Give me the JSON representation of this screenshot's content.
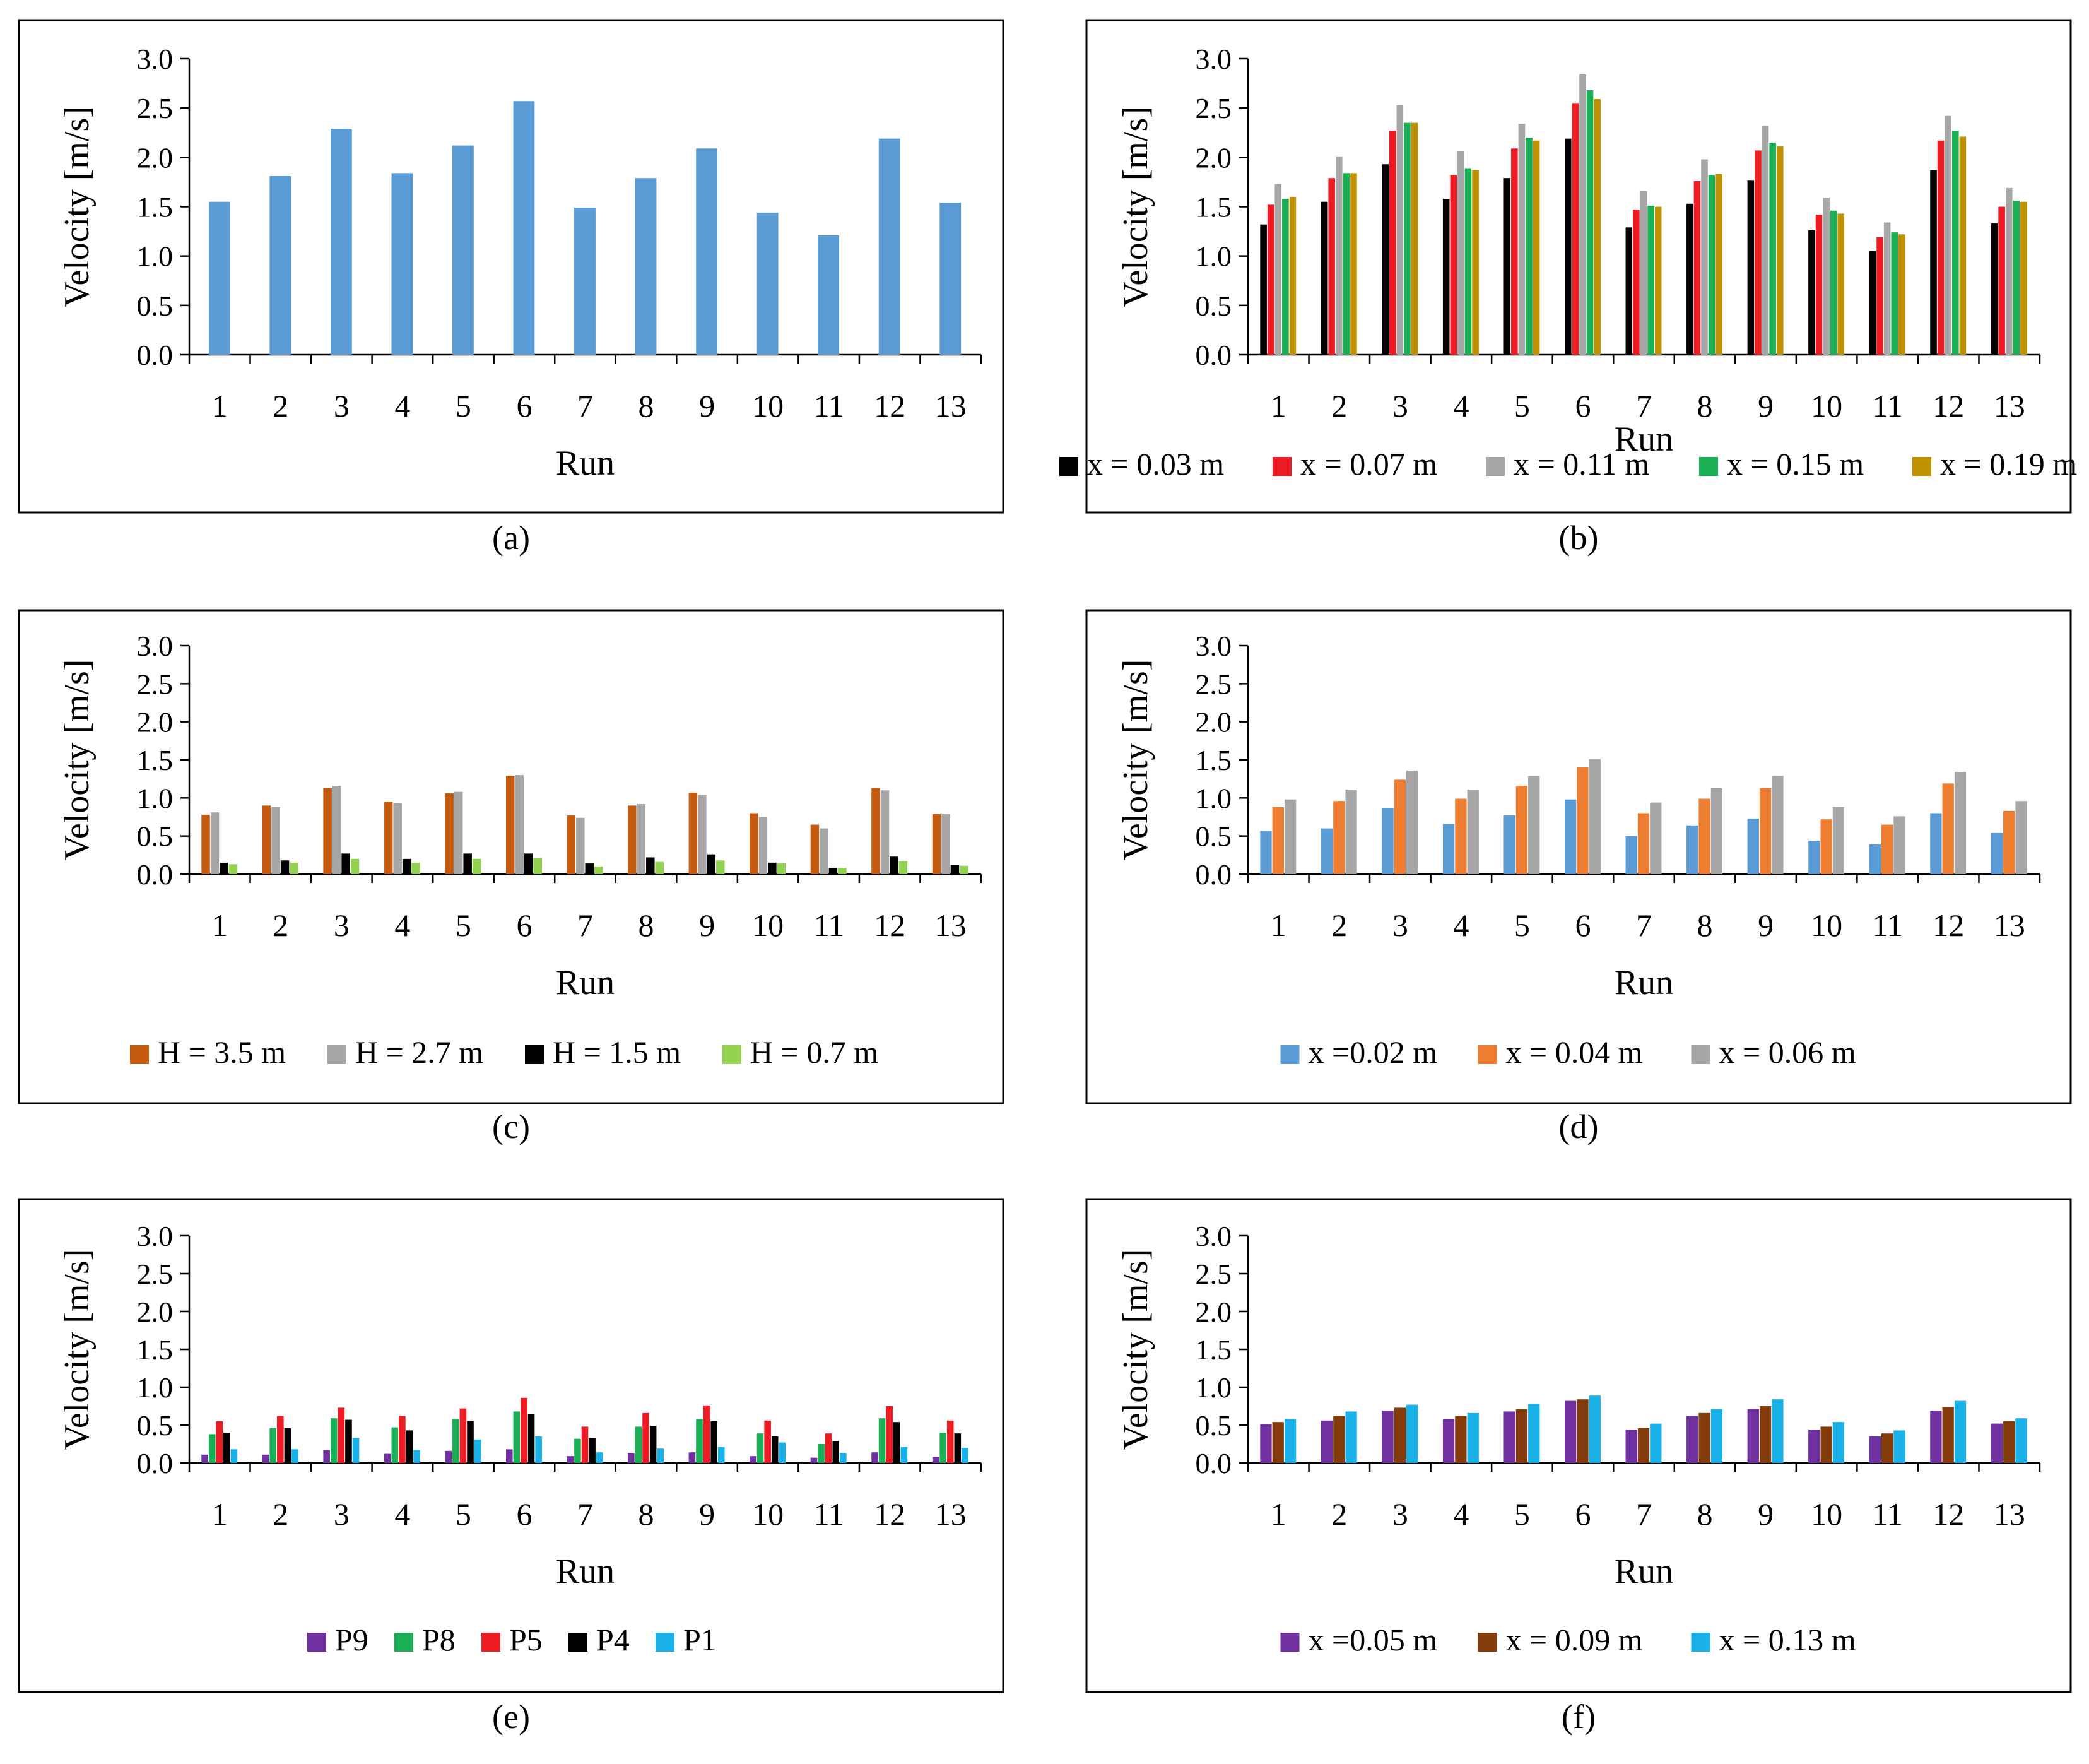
{
  "figure": {
    "panels": [
      {
        "id": "a",
        "caption": "(a)"
      },
      {
        "id": "b",
        "caption": "(b)"
      },
      {
        "id": "c",
        "caption": "(c)"
      },
      {
        "id": "d",
        "caption": "(d)"
      },
      {
        "id": "e",
        "caption": "(e)"
      },
      {
        "id": "f",
        "caption": "(f)"
      }
    ]
  },
  "chart_data": [
    {
      "panel": "a",
      "type": "bar",
      "xlabel": "Run",
      "ylabel": "Velocity [m/s]",
      "ylim": [
        0,
        3.0
      ],
      "yticks": [
        "0.0",
        "0.5",
        "1.0",
        "1.5",
        "2.0",
        "2.5",
        "3.0"
      ],
      "categories": [
        "1",
        "2",
        "3",
        "4",
        "5",
        "6",
        "7",
        "8",
        "9",
        "10",
        "11",
        "12",
        "13"
      ],
      "legend": "none",
      "series": [
        {
          "name": "",
          "color": "#5b9bd5",
          "values": [
            1.55,
            1.81,
            2.29,
            1.84,
            2.12,
            2.57,
            1.49,
            1.79,
            2.09,
            1.44,
            1.21,
            2.19,
            1.54
          ]
        }
      ]
    },
    {
      "panel": "b",
      "type": "bar",
      "xlabel": "Run",
      "ylabel": "Velocity [m/s]",
      "ylim": [
        0,
        3.0
      ],
      "yticks": [
        "0.0",
        "0.5",
        "1.0",
        "1.5",
        "2.0",
        "2.5",
        "3.0"
      ],
      "categories": [
        "1",
        "2",
        "3",
        "4",
        "5",
        "6",
        "7",
        "8",
        "9",
        "10",
        "11",
        "12",
        "13"
      ],
      "legend": "bottom",
      "series": [
        {
          "name": "x = 0.03 m",
          "color": "#000000",
          "values": [
            1.32,
            1.55,
            1.93,
            1.58,
            1.79,
            2.19,
            1.29,
            1.53,
            1.77,
            1.26,
            1.05,
            1.87,
            1.33
          ]
        },
        {
          "name": "x = 0.07 m",
          "color": "#ed1c24",
          "values": [
            1.52,
            1.79,
            2.27,
            1.82,
            2.09,
            2.55,
            1.47,
            1.76,
            2.07,
            1.42,
            1.19,
            2.17,
            1.5
          ]
        },
        {
          "name": "x = 0.11 m",
          "color": "#a6a6a6",
          "values": [
            1.73,
            2.01,
            2.53,
            2.06,
            2.34,
            2.84,
            1.66,
            1.98,
            2.32,
            1.59,
            1.34,
            2.42,
            1.69
          ]
        },
        {
          "name": "x = 0.15 m",
          "color": "#1aaf54",
          "values": [
            1.58,
            1.84,
            2.35,
            1.89,
            2.2,
            2.68,
            1.51,
            1.82,
            2.15,
            1.46,
            1.24,
            2.27,
            1.56
          ]
        },
        {
          "name": "x = 0.19 m",
          "color": "#bf9000",
          "values": [
            1.6,
            1.84,
            2.35,
            1.87,
            2.17,
            2.59,
            1.5,
            1.83,
            2.11,
            1.43,
            1.22,
            2.21,
            1.55
          ]
        }
      ]
    },
    {
      "panel": "c",
      "type": "bar",
      "xlabel": "Run",
      "ylabel": "Velocity [m/s]",
      "ylim": [
        0,
        3.0
      ],
      "yticks": [
        "0.0",
        "0.5",
        "1.0",
        "1.5",
        "2.0",
        "2.5",
        "3.0"
      ],
      "categories": [
        "1",
        "2",
        "3",
        "4",
        "5",
        "6",
        "7",
        "8",
        "9",
        "10",
        "11",
        "12",
        "13"
      ],
      "legend": "bottom",
      "series": [
        {
          "name": "H = 3.5 m",
          "color": "#c55a11",
          "values": [
            0.78,
            0.9,
            1.13,
            0.95,
            1.06,
            1.29,
            0.77,
            0.9,
            1.07,
            0.8,
            0.65,
            1.13,
            0.79
          ]
        },
        {
          "name": "H = 2.7 m",
          "color": "#a6a6a6",
          "values": [
            0.81,
            0.88,
            1.16,
            0.93,
            1.08,
            1.3,
            0.74,
            0.92,
            1.04,
            0.75,
            0.6,
            1.1,
            0.79
          ]
        },
        {
          "name": "H = 1.5 m",
          "color": "#000000",
          "values": [
            0.15,
            0.18,
            0.27,
            0.2,
            0.27,
            0.27,
            0.14,
            0.22,
            0.26,
            0.15,
            0.08,
            0.23,
            0.12
          ]
        },
        {
          "name": "H = 0.7 m",
          "color": "#92d050",
          "values": [
            0.13,
            0.15,
            0.2,
            0.15,
            0.2,
            0.21,
            0.1,
            0.16,
            0.18,
            0.14,
            0.08,
            0.17,
            0.11
          ]
        }
      ]
    },
    {
      "panel": "d",
      "type": "bar",
      "xlabel": "Run",
      "ylabel": "Velocity [m/s]",
      "ylim": [
        0,
        3.0
      ],
      "yticks": [
        "0.0",
        "0.5",
        "1.0",
        "1.5",
        "2.0",
        "2.5",
        "3.0"
      ],
      "categories": [
        "1",
        "2",
        "3",
        "4",
        "5",
        "6",
        "7",
        "8",
        "9",
        "10",
        "11",
        "12",
        "13"
      ],
      "legend": "bottom",
      "series": [
        {
          "name": "x =0.02 m",
          "color": "#5b9bd5",
          "values": [
            0.57,
            0.6,
            0.87,
            0.66,
            0.77,
            0.98,
            0.5,
            0.64,
            0.73,
            0.44,
            0.39,
            0.8,
            0.54
          ]
        },
        {
          "name": "x = 0.04 m",
          "color": "#ed7d31",
          "values": [
            0.88,
            0.96,
            1.24,
            0.99,
            1.16,
            1.4,
            0.8,
            0.99,
            1.13,
            0.72,
            0.65,
            1.19,
            0.83
          ]
        },
        {
          "name": "x = 0.06 m",
          "color": "#a6a6a6",
          "values": [
            0.98,
            1.11,
            1.36,
            1.11,
            1.29,
            1.51,
            0.94,
            1.13,
            1.29,
            0.88,
            0.76,
            1.34,
            0.96
          ]
        }
      ]
    },
    {
      "panel": "e",
      "type": "bar",
      "xlabel": "Run",
      "ylabel": "Velocity [m/s]",
      "ylim": [
        0,
        3.0
      ],
      "yticks": [
        "0.0",
        "0.5",
        "1.0",
        "1.5",
        "2.0",
        "2.5",
        "3.0"
      ],
      "categories": [
        "1",
        "2",
        "3",
        "4",
        "5",
        "6",
        "7",
        "8",
        "9",
        "10",
        "11",
        "12",
        "13"
      ],
      "legend": "bottom",
      "series": [
        {
          "name": "P9",
          "color": "#7030a0",
          "values": [
            0.11,
            0.11,
            0.17,
            0.12,
            0.16,
            0.18,
            0.09,
            0.13,
            0.14,
            0.09,
            0.07,
            0.14,
            0.08
          ]
        },
        {
          "name": "P8",
          "color": "#1aaf54",
          "values": [
            0.38,
            0.46,
            0.59,
            0.47,
            0.58,
            0.68,
            0.32,
            0.48,
            0.58,
            0.39,
            0.25,
            0.59,
            0.4
          ]
        },
        {
          "name": "P5",
          "color": "#ed1c24",
          "values": [
            0.55,
            0.62,
            0.73,
            0.62,
            0.72,
            0.86,
            0.48,
            0.66,
            0.76,
            0.56,
            0.39,
            0.75,
            0.56
          ]
        },
        {
          "name": "P4",
          "color": "#000000",
          "values": [
            0.4,
            0.46,
            0.57,
            0.43,
            0.55,
            0.65,
            0.33,
            0.49,
            0.55,
            0.35,
            0.29,
            0.54,
            0.39
          ]
        },
        {
          "name": "P1",
          "color": "#1ab0e8",
          "values": [
            0.18,
            0.18,
            0.33,
            0.17,
            0.31,
            0.35,
            0.14,
            0.19,
            0.21,
            0.27,
            0.13,
            0.21,
            0.2
          ]
        }
      ]
    },
    {
      "panel": "f",
      "type": "bar",
      "xlabel": "Run",
      "ylabel": "Velocity [m/s]",
      "ylim": [
        0,
        3.0
      ],
      "yticks": [
        "0.0",
        "0.5",
        "1.0",
        "1.5",
        "2.0",
        "2.5",
        "3.0"
      ],
      "categories": [
        "1",
        "2",
        "3",
        "4",
        "5",
        "6",
        "7",
        "8",
        "9",
        "10",
        "11",
        "12",
        "13"
      ],
      "legend": "bottom",
      "series": [
        {
          "name": "x =0.05 m",
          "color": "#7030a0",
          "values": [
            0.51,
            0.56,
            0.69,
            0.58,
            0.68,
            0.82,
            0.44,
            0.62,
            0.71,
            0.44,
            0.35,
            0.69,
            0.52
          ]
        },
        {
          "name": "x = 0.09 m",
          "color": "#843c0c",
          "values": [
            0.54,
            0.62,
            0.73,
            0.62,
            0.71,
            0.84,
            0.46,
            0.66,
            0.75,
            0.48,
            0.39,
            0.74,
            0.55
          ]
        },
        {
          "name": "x = 0.13 m",
          "color": "#1ab0e8",
          "values": [
            0.58,
            0.68,
            0.77,
            0.66,
            0.78,
            0.89,
            0.52,
            0.71,
            0.84,
            0.54,
            0.43,
            0.82,
            0.59
          ]
        }
      ]
    }
  ]
}
